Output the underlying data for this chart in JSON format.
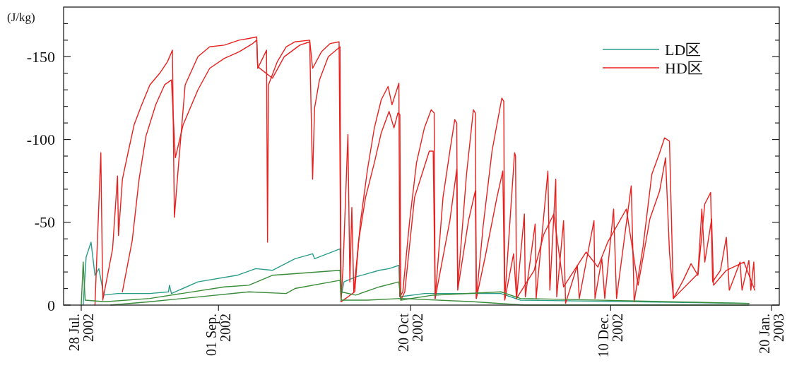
{
  "chart_data": {
    "type": "line",
    "ylabel": "(J/kg)",
    "legend": "top right",
    "line_style": "solid",
    "xlim": [
      "2002-07-23T12:00",
      "2003-01-22"
    ],
    "xticks": [
      {
        "value": "2002-07-28",
        "label": "28 Jul. 2002"
      },
      {
        "value": "2002-09-01",
        "label": "01 Sep. 2002"
      },
      {
        "value": "2002-10-20",
        "label": "20 Oct 2002"
      },
      {
        "value": "2002-12-10",
        "label": "10 Dec. 2002"
      },
      {
        "value": "2003-01-20",
        "label": "20 Jan. 2003"
      }
    ],
    "ylim": [
      0,
      -180
    ],
    "yticks": [
      0,
      {
        "value": -10,
        "label": null
      },
      {
        "value": -20,
        "label": null
      },
      {
        "value": -30,
        "label": null
      },
      {
        "value": -40,
        "label": null
      },
      -50,
      {
        "value": -60,
        "label": null
      },
      {
        "value": -70,
        "label": null
      },
      {
        "value": -80,
        "label": null
      },
      {
        "value": -90,
        "label": null
      },
      -100,
      {
        "value": -110,
        "label": null
      },
      {
        "value": -120,
        "label": null
      },
      {
        "value": -130,
        "label": null
      },
      {
        "value": -140,
        "label": null
      },
      -150,
      {
        "value": -160,
        "label": null
      },
      {
        "value": -170,
        "label": null
      }
    ],
    "series": [
      {
        "name": "LD区",
        "color": "#2a9d8a",
        "x": [
          "2002-07-28T12:00",
          "2002-07-29T06:00",
          "2002-07-30T12:00",
          "2002-07-31T12:00",
          "2002-08-01T12:00",
          "2002-08-02T18:00",
          "2002-08-06T06:00",
          "2002-08-14T12:00",
          "2002-08-19T06:00",
          "2002-08-19T12:00",
          "2002-08-20",
          "2002-08-26T18:00",
          "2002-09-05T18:00",
          "2002-09-10T12:00",
          "2002-09-14T18:00",
          "2002-09-20T12:00",
          "2002-09-25",
          "2002-09-25T12:00",
          "2002-10-02",
          "2002-10-02T06:00",
          "2002-10-03",
          "2002-10-06",
          "2002-10-12",
          "2002-10-14T12:00",
          "2002-10-17",
          "2002-10-17T06:00",
          "2002-10-23T12:00",
          "2002-11-12",
          "2002-11-17",
          "2002-12-16T12:00",
          "2003-01-14T06:00"
        ],
        "values": [
          0,
          -29,
          -38,
          -18,
          -22,
          -6,
          -7,
          -7,
          -8,
          -12,
          -7,
          -14,
          -18,
          -22,
          -21,
          -28,
          -31,
          -28,
          -34,
          -5,
          -14,
          -17,
          -21,
          -22,
          -24,
          -5,
          -7,
          -7,
          -3,
          -2,
          -1
        ]
      },
      {
        "name": "HD区",
        "color": "#e8201e",
        "x": [
          "2002-07-31T12:00",
          "2002-08-02",
          "2002-08-02T12:00",
          "2002-08-05",
          "2002-08-06T06:00",
          "2002-08-06T12:00",
          "2002-08-07T12:00",
          "2002-08-08T18:00",
          "2002-08-10T12:00",
          "2002-08-12T06:00",
          "2002-08-14T12:00",
          "2002-08-17",
          "2002-08-19",
          "2002-08-20T06:00",
          "2002-08-20T18:00",
          "2002-08-21T18:00",
          "2002-08-23T12:00",
          "2002-08-26T18:00",
          "2002-08-29T18:00",
          "2002-09-02T12:00",
          "2002-09-06T06:00",
          "2002-09-08T18:00",
          "2002-09-10T18:00",
          "2002-09-11",
          "2002-09-12T06:00",
          "2002-09-13T06:00",
          "2002-09-13T12:00",
          "2002-09-13T18:00",
          "2002-09-16",
          "2002-09-18T06:00",
          "2002-09-20T12:00",
          "2002-09-24T06:00",
          "2002-09-25",
          "2002-09-27T06:00",
          "2002-09-29T12:00",
          "2002-10-01T18:00",
          "2002-10-02T06:00",
          "2002-10-02T18:00",
          "2002-10-04",
          "2002-10-04T12:00",
          "2002-10-05",
          "2002-10-05T12:00",
          "2002-10-07T06:00",
          "2002-10-09",
          "2002-10-10T18:00",
          "2002-10-12T12:00",
          "2002-10-14T06:00",
          "2002-10-15T06:00",
          "2002-10-17",
          "2002-10-17T06:00",
          "2002-10-18",
          "2002-10-19T18:00",
          "2002-10-21T12:00",
          "2002-10-23T12:00",
          "2002-10-25T06:00",
          "2002-10-26",
          "2002-10-26T06:00",
          "2002-10-28T06:00",
          "2002-10-30",
          "2002-10-31T06:00",
          "2002-10-31T18:00",
          "2002-11-01",
          "2002-11-03T06:00",
          "2002-11-05",
          "2002-11-05T12:00",
          "2002-11-05T18:00",
          "2002-11-07T12:00",
          "2002-11-09T18:00",
          "2002-11-12T06:00",
          "2002-11-12T18:00",
          "2002-11-13",
          "2002-11-15T12:00",
          "2002-11-15T18:00",
          "2002-11-16",
          "2002-11-18",
          "2002-11-18T06:00",
          "2002-11-20T18:00",
          "2002-11-21",
          "2002-11-24",
          "2002-11-24T12:00",
          "2002-11-26",
          "2002-11-26T06:00",
          "2002-11-28",
          "2002-11-28T12:00",
          "2002-12-01T12:00",
          "2002-12-02",
          "2002-12-05T18:00",
          "2002-12-06",
          "2002-12-07T18:00",
          "2002-12-08T12:00",
          "2002-12-10T18:00",
          "2002-12-11T12:00",
          "2002-12-15T06:00",
          "2002-12-16",
          "2002-12-18T06:00",
          "2002-12-20T12:00",
          "2002-12-22T12:00",
          "2002-12-23T18:00",
          "2002-12-25",
          "2002-12-25T12:00",
          "2002-12-26",
          "2002-12-28T12:00",
          "2002-12-30T12:00",
          "2003-01-01T06:00",
          "2003-01-03",
          "2003-01-04T12:00",
          "2003-01-05",
          "2003-01-07",
          "2003-01-08T12:00",
          "2003-01-09T06:00",
          "2003-01-12",
          "2003-01-12T12:00",
          "2003-01-14T06:00",
          "2003-01-14T18:00",
          "2003-01-15T12:00",
          "2003-01-15T18:00"
        ],
        "values": [
          0,
          -92,
          -3,
          -34,
          -78,
          -42,
          -76,
          -90,
          -109,
          -120,
          -133,
          -140,
          -147,
          -154,
          -53,
          -83,
          -133,
          -150,
          -156,
          -157,
          -160,
          -161,
          -162,
          -143,
          -149,
          -154,
          -38,
          -133,
          -147,
          -156,
          -159,
          -160,
          -143,
          -153,
          -158,
          -159,
          -3,
          -22,
          -103,
          -14,
          -59,
          -8,
          -51,
          -82,
          -107,
          -124,
          -132,
          -121,
          -134,
          -5,
          -8,
          -51,
          -86,
          -107,
          -118,
          -116,
          -4,
          -65,
          -93,
          -112,
          -110,
          -11,
          -79,
          -118,
          -116,
          -4,
          -48,
          -93,
          -125,
          -123,
          -4,
          -92,
          -90,
          -4,
          -55,
          -5,
          -49,
          -4,
          -81,
          -9,
          -76,
          -5,
          -51,
          -1,
          -24,
          -4,
          -51,
          -4,
          -28,
          -4,
          -58,
          -4,
          -72,
          -2,
          -35,
          -79,
          -92,
          -101,
          -99,
          -52,
          -4,
          -15,
          -25,
          -18,
          -61,
          -68,
          -14,
          -21,
          -41,
          -9,
          -26,
          -9,
          -27,
          -9,
          -26,
          -11
        ]
      },
      {
        "color": "#e8201e",
        "x": [
          "2002-08-07T12:00",
          "2002-08-10",
          "2002-08-11T18:00",
          "2002-08-13T12:00",
          "2002-08-16",
          "2002-08-18T06:00",
          "2002-08-20",
          "2002-08-21",
          "2002-08-23",
          "2002-08-26T18:00",
          "2002-08-29T18:00",
          "2002-09-02T12:00",
          "2002-09-06T06:00",
          "2002-09-09T18:00",
          "2002-09-10T18:00",
          "2002-09-11",
          "2002-09-14T18:00",
          "2002-09-17T18:00",
          "2002-09-21T18:00",
          "2002-09-24T06:00",
          "2002-09-25",
          "2002-09-25T12:00",
          "2002-09-26T18:00",
          "2002-09-29",
          "2002-10-02",
          "2002-10-02T06:00",
          "2002-10-05T18:00",
          "2002-10-06T18:00",
          "2002-10-08T12:00",
          "2002-10-10T18:00",
          "2002-10-12T12:00",
          "2002-10-14T12:00",
          "2002-10-15T18:00",
          "2002-10-16T18:00",
          "2002-10-17T06:00",
          "2002-10-17T12:00",
          "2002-10-18T12:00",
          "2002-10-21",
          "2002-10-24T18:00",
          "2002-10-25T18:00",
          "2002-10-26T06:00",
          "2002-10-30",
          "2002-10-31T18:00",
          "2002-11-01",
          "2002-11-03T18:00",
          "2002-11-05T12:00",
          "2002-11-05T18:00",
          "2002-11-08",
          "2002-11-11",
          "2002-11-12T12:00",
          "2002-11-13",
          "2002-11-15T06:00",
          "2002-11-16",
          "2002-11-20T12:00",
          "2002-11-23",
          "2002-11-25T12:00",
          "2002-11-28",
          "2002-12-03T18:00",
          "2002-12-06T18:00",
          "2002-12-09T06:00",
          "2002-12-14",
          "2002-12-17",
          "2002-12-20",
          "2002-12-22T12:00",
          "2002-12-24",
          "2002-12-25",
          "2002-12-26",
          "2003-01-01T06:00",
          "2003-01-02T06:00",
          "2003-01-03",
          "2003-01-04T18:00",
          "2003-01-05T06:00",
          "2003-01-08T12:00",
          "2003-01-13",
          "2003-01-15T18:00"
        ],
        "values": [
          -8,
          -39,
          -76,
          -102,
          -121,
          -133,
          -136,
          -89,
          -109,
          -130,
          -143,
          -149,
          -153,
          -158,
          -160,
          -144,
          -137,
          -150,
          -157,
          -159,
          -76,
          -119,
          -136,
          -150,
          -156,
          -2,
          -8,
          -39,
          -65,
          -86,
          -104,
          -117,
          -107,
          -116,
          -115,
          -3,
          -8,
          -65,
          -93,
          -93,
          -4,
          -51,
          -82,
          -9,
          -51,
          -69,
          -4,
          -29,
          -65,
          -81,
          -3,
          -31,
          -4,
          -21,
          -43,
          -55,
          -11,
          -32,
          -23,
          -38,
          -58,
          -12,
          -52,
          -69,
          -89,
          -32,
          -4,
          -19,
          -58,
          -26,
          -52,
          -12,
          -21,
          -26,
          -9
        ]
      },
      {
        "color": "#3a8c3a",
        "x": [
          "2002-07-28",
          "2002-07-28T12:00",
          "2002-07-29",
          "2002-08-03",
          "2002-08-14T12:00",
          "2002-09-02T12:00",
          "2002-09-08T18:00",
          "2002-09-14T18:00",
          "2002-09-20T12:00",
          "2002-10-02",
          "2002-10-02T06:00",
          "2002-10-06",
          "2002-10-12",
          "2002-10-17",
          "2002-10-17T12:00",
          "2002-10-25T18:00",
          "2002-11-12",
          "2002-11-17",
          "2003-01-14T06:00"
        ],
        "values": [
          0,
          -26,
          -3,
          -2,
          -4,
          -11,
          -12,
          -18,
          -19,
          -21,
          -8,
          -6,
          -11,
          -14,
          -3,
          -6,
          -8,
          -4,
          -1
        ]
      },
      {
        "color": "#3a8c3a",
        "x": [
          "2002-08-04T12:00",
          "2002-08-14T12:00",
          "2002-09-08T18:00",
          "2002-09-18T06:00",
          "2002-09-20T12:00",
          "2002-10-02",
          "2002-10-02T06:00",
          "2002-10-09",
          "2002-10-17T12:00",
          "2002-11-05",
          "2002-11-18",
          "2003-01-14T06:00"
        ],
        "values": [
          0,
          -2,
          -8,
          -7,
          -10,
          -15,
          -3,
          -3,
          -4,
          -2,
          0,
          0
        ]
      }
    ]
  }
}
